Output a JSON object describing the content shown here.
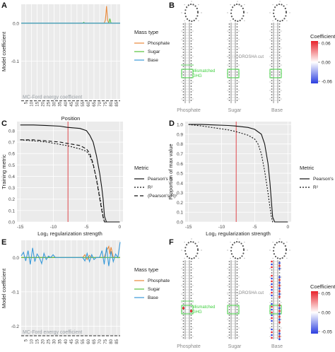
{
  "colors": {
    "phosphate": "#e8883a",
    "sugar": "#57c23b",
    "base": "#3a9ad9",
    "mcford": "#333333",
    "mcford_text": "#9aa0a6",
    "panel_bg": "#ebebeb",
    "red_line": "#e0474c",
    "green_box": "#3fcf3f",
    "coef_high": "#e8222a",
    "coef_mid": "#ffffff",
    "coef_low": "#2b3ee0"
  },
  "panels": {
    "A": {
      "letter": "A",
      "ylabel": "Model coefficient",
      "xlabel": "Position",
      "mcford_label": "MC-Ford energy coefficient",
      "legend_title": "Mass type",
      "legend_items": [
        "Phosphate",
        "Sugar",
        "Base"
      ]
    },
    "B": {
      "letter": "B",
      "colorbar_title": "Coefficients",
      "colorbar_ticks": [
        "0.06",
        "0.00",
        "-0.06"
      ],
      "structures": [
        "Phosphate",
        "Sugar",
        "Base"
      ],
      "mismatch_label": "Mismatched",
      "ghg_label": "GHG",
      "drosha_label": "DROSHA cut"
    },
    "C": {
      "letter": "C",
      "ylabel": "Training metric",
      "xlabel": "Log₂ regularization strength",
      "legend_title": "Metric",
      "legend_items": [
        "Pearson's R",
        "R²",
        "(Pearson's R)²"
      ]
    },
    "D": {
      "letter": "D",
      "ylabel": "Proportion of max value",
      "xlabel": "Log₂ regularization strength",
      "legend_title": "Metric",
      "legend_items": [
        "Pearson's R",
        "R²"
      ]
    },
    "E": {
      "letter": "E",
      "ylabel": "Model coefficient",
      "xlabel": "Position",
      "mcford_label": "MC-Ford energy coefficient",
      "legend_title": "Mass type",
      "legend_items": [
        "Phosphate",
        "Sugar",
        "Base"
      ]
    },
    "F": {
      "letter": "F",
      "colorbar_title": "Coefficients",
      "colorbar_ticks": [
        "0.05",
        "0.00",
        "-0.05"
      ],
      "structures": [
        "Phosphate",
        "Sugar",
        "Base"
      ],
      "mismatch_label": "Mismatched",
      "ghg_label": "GHG",
      "drosha_label": "DROSHA cut"
    }
  },
  "chart_data": [
    {
      "panel": "A",
      "type": "line",
      "xlabel": "Position",
      "ylabel": "Model coefficient",
      "xlim": [
        1,
        88
      ],
      "ylim": [
        -0.2,
        0.05
      ],
      "xticks": [
        5,
        10,
        15,
        20,
        25,
        30,
        35,
        40,
        45,
        50,
        55,
        60,
        65,
        70,
        75,
        80,
        85
      ],
      "yticks": [
        0.0,
        -0.1
      ],
      "ytick_labels": [
        "0.0",
        "-0.1"
      ],
      "hline": -0.205,
      "series": [
        {
          "name": "Phosphate",
          "x": [
            1,
            74,
            75,
            76,
            77,
            78,
            88
          ],
          "y": [
            0,
            0,
            0.008,
            0.045,
            0.008,
            0,
            0
          ]
        },
        {
          "name": "Sugar",
          "x": [
            1,
            55,
            56,
            57,
            78,
            79,
            80,
            88
          ],
          "y": [
            0,
            0,
            0.002,
            0,
            0,
            0.012,
            0,
            0
          ]
        },
        {
          "name": "Base",
          "x": [
            1,
            88
          ],
          "y": [
            0,
            0
          ]
        }
      ]
    },
    {
      "panel": "C",
      "type": "line",
      "xlabel": "Log₂ regularization strength",
      "ylabel": "Training metric",
      "xlim": [
        -15.5,
        0.5
      ],
      "ylim": [
        0,
        0.88
      ],
      "xticks": [
        -15,
        -10,
        -5,
        0
      ],
      "yticks": [
        0.0,
        0.1,
        0.2,
        0.3,
        0.4,
        0.5,
        0.6,
        0.7,
        0.8
      ],
      "vline": -7.8,
      "series": [
        {
          "name": "Pearson's R",
          "x": [
            -15,
            -13,
            -11,
            -9,
            -8,
            -6,
            -5,
            -4.5,
            -4,
            -3.5,
            -3,
            -2.7,
            -2.5,
            -2.3,
            -2,
            -1.5,
            -1,
            0
          ],
          "y": [
            0.85,
            0.85,
            0.845,
            0.84,
            0.83,
            0.82,
            0.8,
            0.76,
            0.7,
            0.58,
            0.42,
            0.3,
            0.2,
            0.05,
            0.0,
            0.0,
            0.0,
            0.0
          ]
        },
        {
          "name": "R²",
          "x": [
            -15,
            -13,
            -11,
            -9,
            -8,
            -6,
            -5,
            -4.5,
            -4,
            -3.5,
            -3,
            -2.7,
            -2.5,
            -2.3,
            -2,
            -1,
            0
          ],
          "y": [
            0.72,
            0.71,
            0.7,
            0.68,
            0.67,
            0.64,
            0.62,
            0.58,
            0.5,
            0.38,
            0.22,
            0.12,
            0.05,
            0.0,
            0.0,
            0.0,
            0.0
          ]
        },
        {
          "name": "(Pearson's R)²",
          "x": [
            -15,
            -13,
            -11,
            -9,
            -8,
            -6,
            -5,
            -4.5,
            -4,
            -3.5,
            -3,
            -2.7,
            -2.5,
            -2.3,
            -2,
            -1,
            0
          ],
          "y": [
            0.72,
            0.72,
            0.71,
            0.7,
            0.69,
            0.67,
            0.64,
            0.6,
            0.51,
            0.37,
            0.2,
            0.1,
            0.04,
            0.0,
            0.0,
            0.0,
            0.0
          ]
        }
      ]
    },
    {
      "panel": "D",
      "type": "line",
      "xlabel": "Log₂ regularization strength",
      "ylabel": "Proportion of max value",
      "xlim": [
        -15.5,
        0.5
      ],
      "ylim": [
        0,
        1.03
      ],
      "xticks": [
        -15,
        -10,
        -5,
        0
      ],
      "yticks": [
        0.0,
        0.1,
        0.2,
        0.3,
        0.4,
        0.5,
        0.6,
        0.7,
        0.8,
        0.9,
        1.0
      ],
      "vline": -7.8,
      "series": [
        {
          "name": "Pearson's R",
          "x": [
            -15,
            -13,
            -11,
            -9,
            -8,
            -6,
            -5,
            -4,
            -3.5,
            -3,
            -2.7,
            -2.5,
            -2.3,
            -2,
            -1,
            0
          ],
          "y": [
            1.0,
            1.0,
            0.995,
            0.99,
            0.985,
            0.97,
            0.95,
            0.9,
            0.8,
            0.6,
            0.4,
            0.22,
            0.05,
            0.0,
            0.0,
            0.0
          ]
        },
        {
          "name": "R²",
          "x": [
            -15,
            -13,
            -11,
            -9,
            -8,
            -6,
            -5,
            -4.5,
            -4,
            -3.5,
            -3,
            -2.7,
            -2.5,
            -2.3,
            -2,
            -1,
            0
          ],
          "y": [
            1.0,
            0.985,
            0.965,
            0.945,
            0.93,
            0.89,
            0.85,
            0.8,
            0.7,
            0.52,
            0.3,
            0.15,
            0.06,
            0.0,
            0.0,
            0.0,
            0.0
          ]
        }
      ]
    },
    {
      "panel": "E",
      "type": "line",
      "xlabel": "Position",
      "ylabel": "Model coefficient",
      "xlim": [
        1,
        88
      ],
      "ylim": [
        -0.23,
        0.05
      ],
      "xticks": [
        5,
        10,
        15,
        20,
        25,
        30,
        35,
        40,
        45,
        50,
        55,
        60,
        65,
        70,
        75,
        80,
        85
      ],
      "yticks": [
        0.0,
        -0.1,
        -0.2
      ],
      "ytick_labels": [
        "0.0",
        "-0.1",
        "-0.2"
      ],
      "hline": -0.228,
      "series": [
        {
          "name": "Phosphate",
          "x": [
            1,
            55,
            57,
            59,
            61,
            63,
            70,
            74,
            76,
            78,
            79,
            80,
            82,
            88
          ],
          "y": [
            0,
            0,
            0.008,
            -0.006,
            0.006,
            0,
            0,
            0,
            0.02,
            0.032,
            0.01,
            0.03,
            0,
            0
          ]
        },
        {
          "name": "Sugar",
          "x": [
            1,
            88
          ],
          "y": [
            0,
            0
          ]
        },
        {
          "name": "Base",
          "x": [
            1,
            3,
            5,
            7,
            9,
            11,
            13,
            15,
            17,
            19,
            21,
            23,
            25,
            27,
            29,
            31,
            40,
            50,
            55,
            57,
            59,
            61,
            63,
            65,
            67,
            70,
            72,
            74,
            76,
            78,
            80,
            82,
            84,
            86,
            88
          ],
          "y": [
            0.005,
            0.015,
            -0.01,
            0.02,
            -0.02,
            0.028,
            -0.012,
            0.01,
            0.0,
            -0.018,
            0.012,
            -0.006,
            0.004,
            0.0,
            0.008,
            0.0,
            0.0,
            0.0,
            0.0,
            -0.01,
            0.012,
            -0.012,
            0.008,
            -0.006,
            0.0,
            0.0,
            0.02,
            -0.02,
            0.03,
            -0.025,
            0.018,
            -0.012,
            0.01,
            0.0,
            0.045
          ]
        }
      ]
    }
  ]
}
